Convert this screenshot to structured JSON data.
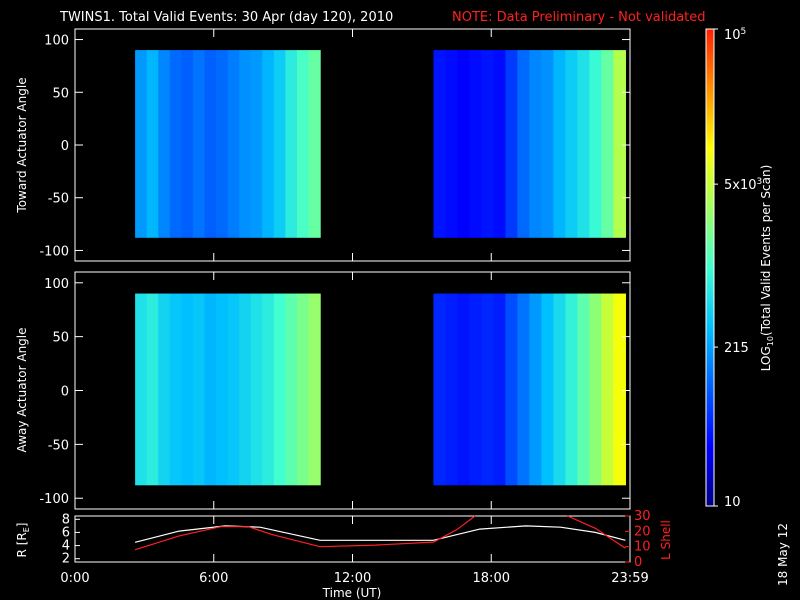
{
  "chart_data": {
    "type": "heatmap",
    "title": "TWINS1. Total Valid Events: 30 Apr (day 120), 2010",
    "note": "NOTE: Data Preliminary - Not validated",
    "stamp": "18 May 12",
    "colorbar": {
      "label": "LOG10(Total Valid Events per Scan)",
      "label_base": "LOG",
      "label_sub": "10",
      "label_rest": "(Total Valid Events per Scan)",
      "range": [
        10,
        100000
      ],
      "ticks": [
        {
          "value": 10,
          "base": "10",
          "sup": ""
        },
        {
          "value": 215,
          "base": "215",
          "sup": ""
        },
        {
          "value": 5000,
          "base": "5x10",
          "sup": "3"
        },
        {
          "value": 100000,
          "base": "10",
          "sup": "5"
        }
      ],
      "colors": [
        "#000080",
        "#0000ff",
        "#0060ff",
        "#00c0ff",
        "#40ffd0",
        "#a0ff60",
        "#ffff00",
        "#ff9000",
        "#ff2000"
      ]
    },
    "x_axis": {
      "label": "Time (UT)",
      "range_hours": [
        0,
        24
      ],
      "ticks": [
        {
          "value": 0,
          "label": "0:00"
        },
        {
          "value": 6,
          "label": "6:00"
        },
        {
          "value": 12,
          "label": "12:00"
        },
        {
          "value": 18,
          "label": "18:00"
        },
        {
          "value": 24,
          "label": "23:59"
        }
      ]
    },
    "panels": [
      {
        "ylabel": "Toward Actuator Angle",
        "ylim": [
          -110,
          110
        ],
        "yticks": [
          100,
          50,
          0,
          -50,
          -100
        ],
        "angle_range": [
          -88,
          90
        ],
        "segments": [
          {
            "start_hour": 2.6,
            "end_hour": 10.6,
            "log_values": [
              2.3,
              2.45,
              2.2,
              2.05,
              2.0,
              2.1,
              2.0,
              2.05,
              2.15,
              2.25,
              2.3,
              2.45,
              2.6,
              2.85,
              3.05,
              3.2
            ]
          },
          {
            "start_hour": 15.5,
            "end_hour": 23.8,
            "log_values": [
              1.6,
              1.55,
              1.5,
              1.55,
              1.6,
              1.55,
              1.8,
              2.05,
              2.2,
              2.25,
              2.45,
              2.6,
              2.75,
              2.95,
              3.2,
              3.6
            ]
          }
        ]
      },
      {
        "ylabel": "Away Actuator Angle",
        "ylim": [
          -110,
          110
        ],
        "yticks": [
          100,
          50,
          0,
          -50,
          -100
        ],
        "angle_range": [
          -88,
          90
        ],
        "segments": [
          {
            "start_hour": 2.6,
            "end_hour": 10.6,
            "log_values": [
              2.75,
              2.85,
              2.65,
              2.55,
              2.5,
              2.55,
              2.45,
              2.5,
              2.55,
              2.65,
              2.75,
              2.85,
              3.0,
              3.15,
              3.3,
              3.45
            ]
          },
          {
            "start_hour": 15.5,
            "end_hour": 23.8,
            "log_values": [
              1.7,
              1.65,
              1.6,
              1.65,
              1.7,
              1.65,
              1.9,
              2.1,
              2.3,
              2.5,
              2.7,
              2.9,
              3.15,
              3.4,
              3.7,
              3.95
            ]
          }
        ]
      }
    ],
    "orbit": {
      "r_label_base": "R [R",
      "r_label_sub": "E",
      "r_label_end": "]",
      "r_ticks": [
        2,
        4,
        6,
        8
      ],
      "r_ylim": [
        1.5,
        8.5
      ],
      "lshell_label": "L Shell",
      "lshell_ticks": [
        0,
        10,
        20,
        30
      ],
      "lshell_ylim": [
        0,
        30
      ],
      "series": [
        {
          "name": "R [RE]",
          "color": "#ffffff",
          "x": [
            2.6,
            4.5,
            6.5,
            8.0,
            10.6,
            13.0,
            15.5,
            17.5,
            19.5,
            21.0,
            22.5,
            23.8
          ],
          "y": [
            4.5,
            6.2,
            7.0,
            6.8,
            4.8,
            4.8,
            4.8,
            6.5,
            7.0,
            6.8,
            6.0,
            4.8
          ]
        },
        {
          "name": "L Shell",
          "color": "#ff2020",
          "x": [
            2.6,
            4.5,
            6.3,
            7.5,
            8.5,
            10.6,
            13.0,
            15.5,
            16.5,
            17.3
          ],
          "y": [
            8,
            17,
            23,
            23,
            18,
            10,
            11,
            13,
            21,
            32
          ]
        },
        {
          "name": "L Shell",
          "color": "#ff2020",
          "x": [
            21.3,
            22.5,
            23.8
          ],
          "y": [
            32,
            22,
            9
          ]
        }
      ]
    }
  }
}
